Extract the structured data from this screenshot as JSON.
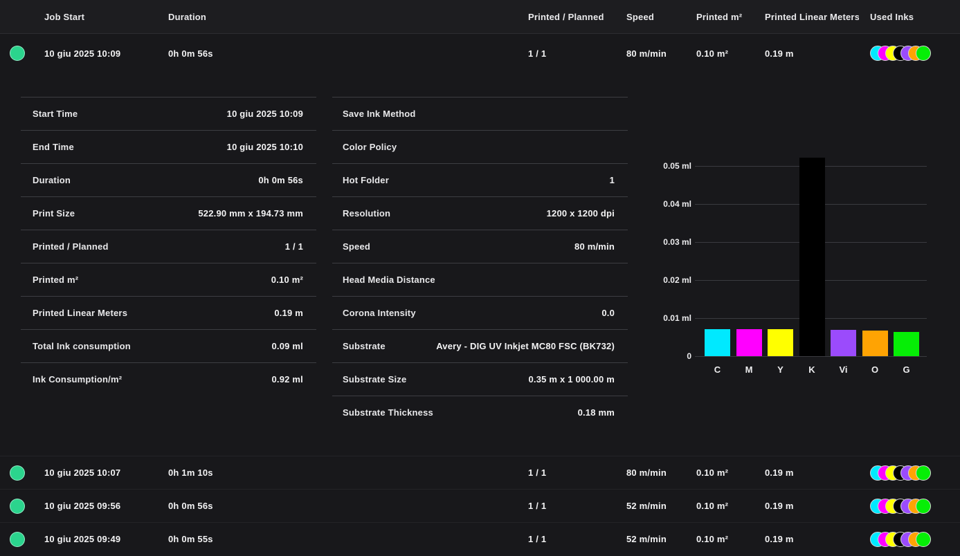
{
  "colors": {
    "background": "#18181b",
    "header_background": "#1d1d20",
    "table_separator": "#3d3e43",
    "row_separator": "#232327",
    "status_green": "#2bd48d",
    "grid_line": "#3a3b40"
  },
  "ink_colors": {
    "C": "#00e9ff",
    "M": "#ff00ff",
    "Y": "#ffff00",
    "K": "#000000",
    "Vi": "#9b4bfc",
    "O": "#ffa303",
    "G": "#06ee06"
  },
  "table": {
    "columns": [
      "Job Start",
      "Duration",
      "Printed / Planned",
      "Speed",
      "Printed m²",
      "Printed Linear Meters",
      "Used Inks"
    ],
    "rows": [
      {
        "status": "completed",
        "job_start": "10 giu 2025 10:09",
        "duration": "0h 0m 56s",
        "printed_planned": "1 / 1",
        "speed": "80 m/min",
        "printed_m2": "0.10 m²",
        "printed_linear": "0.19 m",
        "used_inks": [
          "C",
          "M",
          "Y",
          "K",
          "Vi",
          "O",
          "G"
        ],
        "expanded": true
      },
      {
        "status": "completed",
        "job_start": "10 giu 2025 10:07",
        "duration": "0h 1m 10s",
        "printed_planned": "1 / 1",
        "speed": "80 m/min",
        "printed_m2": "0.10 m²",
        "printed_linear": "0.19 m",
        "used_inks": [
          "C",
          "M",
          "Y",
          "K",
          "Vi",
          "O",
          "G"
        ],
        "expanded": false
      },
      {
        "status": "completed",
        "job_start": "10 giu 2025 09:56",
        "duration": "0h 0m 56s",
        "printed_planned": "1 / 1",
        "speed": "52 m/min",
        "printed_m2": "0.10 m²",
        "printed_linear": "0.19 m",
        "used_inks": [
          "C",
          "M",
          "Y",
          "K",
          "Vi",
          "O",
          "G"
        ],
        "expanded": false
      },
      {
        "status": "completed",
        "job_start": "10 giu 2025 09:49",
        "duration": "0h 0m 55s",
        "printed_planned": "1 / 1",
        "speed": "52 m/min",
        "printed_m2": "0.10 m²",
        "printed_linear": "0.19 m",
        "used_inks": [
          "C",
          "M",
          "Y",
          "K",
          "Vi",
          "O",
          "G"
        ],
        "expanded": false
      }
    ]
  },
  "detail": {
    "left_rows": [
      {
        "label": "Start Time",
        "value": "10 giu 2025 10:09"
      },
      {
        "label": "End Time",
        "value": "10 giu 2025 10:10"
      },
      {
        "label": "Duration",
        "value": "0h 0m 56s"
      },
      {
        "label": "Print Size",
        "value": "522.90 mm x 194.73 mm"
      },
      {
        "label": "Printed / Planned",
        "value": "1 / 1"
      },
      {
        "label": "Printed m²",
        "value": "0.10 m²"
      },
      {
        "label": "Printed Linear Meters",
        "value": "0.19 m"
      },
      {
        "label": "Total Ink consumption",
        "value": "0.09 ml"
      },
      {
        "label": "Ink Consumption/m²",
        "value": "0.92 ml"
      }
    ],
    "right_rows": [
      {
        "label": "Save Ink Method",
        "value": ""
      },
      {
        "label": "Color Policy",
        "value": ""
      },
      {
        "label": "Hot Folder",
        "value": "1"
      },
      {
        "label": "Resolution",
        "value": "1200 x 1200 dpi"
      },
      {
        "label": "Speed",
        "value": "80 m/min"
      },
      {
        "label": "Head Media Distance",
        "value": ""
      },
      {
        "label": "Corona Intensity",
        "value": "0.0"
      },
      {
        "label": "Substrate",
        "value": "Avery - DIG UV Inkjet MC80 FSC (BK732)"
      },
      {
        "label": "Substrate Size",
        "value": "0.35 m x 1 000.00 m"
      },
      {
        "label": "Substrate Thickness",
        "value": "0.18 mm"
      }
    ]
  },
  "chart_data": {
    "type": "bar",
    "title": "",
    "xlabel": "",
    "ylabel": "",
    "categories": [
      "C",
      "M",
      "Y",
      "K",
      "Vi",
      "O",
      "G"
    ],
    "values": [
      0.0071,
      0.0071,
      0.0071,
      0.0522,
      0.0069,
      0.0068,
      0.0064
    ],
    "unit": "ml",
    "bar_colors": [
      "#00e9ff",
      "#ff00ff",
      "#ffff00",
      "#000000",
      "#9b4bfc",
      "#ffa303",
      "#06ee06"
    ],
    "ytick_labels": [
      "0.05 ml",
      "0.04 ml",
      "0.03 ml",
      "0.02 ml",
      "0.01 ml",
      "0"
    ],
    "ytick_values": [
      0.05,
      0.04,
      0.03,
      0.02,
      0.01,
      0
    ],
    "ylim": [
      0,
      0.055
    ],
    "grid": true,
    "legend": "none"
  }
}
